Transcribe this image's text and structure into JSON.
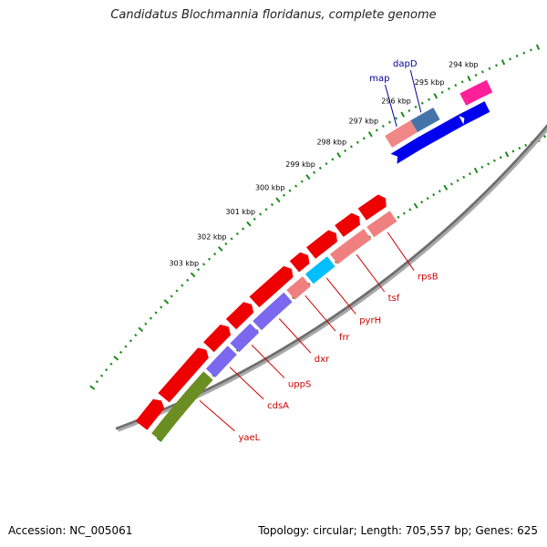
{
  "map": {
    "title": "Candidatus Blochmannia floridanus, complete genome",
    "accession": "Accession: NC_005061",
    "summary": "Topology: circular; Length: 705,557 bp; Genes: 625"
  },
  "scale": {
    "labels": [
      "294 kbp",
      "295 kbp",
      "296 kbp",
      "297 kbp",
      "298 kbp",
      "299 kbp",
      "300 kbp",
      "301 kbp",
      "302 kbp",
      "303 kbp"
    ]
  },
  "colors": {
    "backbone": "#8a8a8a",
    "tick": "#1a8a1a",
    "forward_label": "#000099",
    "reverse_label": "#cc0000"
  },
  "genes": {
    "forward": [
      {
        "name": "dapD",
        "start_kbp": 295.2,
        "end_kbp": 295.9,
        "color": "#3a6ea5"
      },
      {
        "name": "map",
        "start_kbp": 295.9,
        "end_kbp": 296.7,
        "color": "#f08080"
      },
      {
        "name": "",
        "start_kbp": 293.6,
        "end_kbp": 294.4,
        "color": "#ff1493"
      }
    ],
    "forward_inner": [
      {
        "name": "",
        "start_kbp": 293.9,
        "end_kbp": 294.6,
        "color": "#0000ee"
      },
      {
        "name": "",
        "start_kbp": 294.7,
        "end_kbp": 295.9,
        "color": "#0000ee"
      },
      {
        "name": "",
        "start_kbp": 295.9,
        "end_kbp": 296.7,
        "color": "#0000ee"
      }
    ],
    "reverse_outer": [
      {
        "start_kbp": 297.6,
        "end_kbp": 298.4,
        "color": "#ee0000"
      },
      {
        "start_kbp": 298.5,
        "end_kbp": 299.2,
        "color": "#ee0000"
      },
      {
        "start_kbp": 299.3,
        "end_kbp": 300.2,
        "color": "#ee0000"
      },
      {
        "start_kbp": 300.3,
        "end_kbp": 300.8,
        "color": "#ee0000"
      },
      {
        "start_kbp": 300.9,
        "end_kbp": 302.3,
        "color": "#ee0000"
      },
      {
        "start_kbp": 302.4,
        "end_kbp": 303.2,
        "color": "#ee0000"
      },
      {
        "start_kbp": 303.3,
        "end_kbp": 304.1,
        "color": "#ee0000"
      },
      {
        "start_kbp": 304.2,
        "end_kbp": 306.0,
        "color": "#ee0000"
      },
      {
        "start_kbp": 306.1,
        "end_kbp": 307.0,
        "color": "#ee0000"
      }
    ],
    "reverse_inner": [
      {
        "name": "rpsB",
        "start_kbp": 297.7,
        "end_kbp": 298.5,
        "color": "#f08080",
        "label_kbp": 298.1
      },
      {
        "name": "tsf",
        "start_kbp": 298.6,
        "end_kbp": 299.8,
        "color": "#f08080",
        "label_kbp": 299.2
      },
      {
        "name": "pyrH",
        "start_kbp": 299.9,
        "end_kbp": 300.7,
        "color": "#00bfff",
        "label_kbp": 300.3
      },
      {
        "name": "frr",
        "start_kbp": 300.8,
        "end_kbp": 301.4,
        "color": "#f08080",
        "label_kbp": 301.1
      },
      {
        "name": "dxr",
        "start_kbp": 301.5,
        "end_kbp": 302.7,
        "color": "#7b68ee",
        "label_kbp": 302.1
      },
      {
        "name": "uppS",
        "start_kbp": 302.8,
        "end_kbp": 303.6,
        "color": "#7b68ee",
        "label_kbp": 303.2
      },
      {
        "name": "cdsA",
        "start_kbp": 303.7,
        "end_kbp": 304.6,
        "color": "#7b68ee",
        "label_kbp": 304.1
      },
      {
        "name": "yaeL",
        "start_kbp": 304.7,
        "end_kbp": 307.0,
        "color": "#6b8e23",
        "label_kbp": 305.4
      }
    ]
  }
}
